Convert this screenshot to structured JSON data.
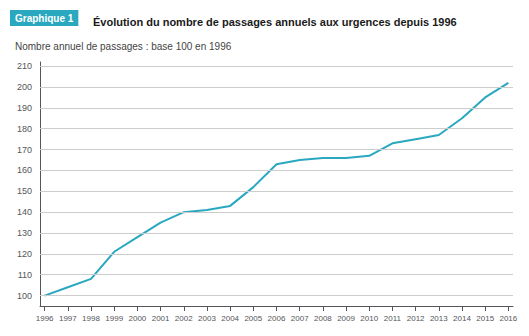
{
  "chart_data": {
    "type": "line",
    "title": "Évolution du nombre de passages annuels aux urgences depuis 1996",
    "subtitle": "Nombre annuel de passages : base 100 en 1996",
    "annotations": [
      "Graphique 1"
    ],
    "x": [
      1996,
      1997,
      1998,
      1999,
      2000,
      2001,
      2002,
      2003,
      2004,
      2005,
      2006,
      2007,
      2008,
      2009,
      2010,
      2011,
      2012,
      2013,
      2014,
      2015,
      2016
    ],
    "values": [
      100,
      104,
      108,
      121,
      128,
      135,
      140,
      141,
      143,
      152,
      163,
      165,
      166,
      166,
      167,
      173,
      175,
      177,
      185,
      195,
      202
    ],
    "color": "#29a8c0",
    "xlim": [
      1995.8,
      2016.2
    ],
    "xticks": [
      1996,
      1997,
      1998,
      1999,
      2000,
      2001,
      2002,
      2003,
      2004,
      2005,
      2006,
      2007,
      2008,
      2009,
      2010,
      2011,
      2012,
      2013,
      2014,
      2015,
      2016
    ],
    "ylim": [
      95,
      212
    ],
    "yticks": [
      100,
      110,
      120,
      130,
      140,
      150,
      160,
      170,
      180,
      190,
      200,
      210
    ],
    "grid": true
  }
}
